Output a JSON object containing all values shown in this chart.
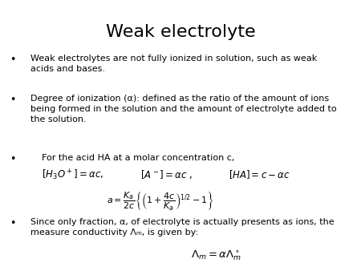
{
  "title": "Weak electrolyte",
  "title_fontsize": 16,
  "background_color": "#ffffff",
  "text_color": "#000000",
  "bullet1": "Weak electrolytes are not fully ionized in solution, such as weak\nacids and bases.",
  "bullet2": "Degree of ionization (α): defined as the ratio of the amount of ions\nbeing formed in the solution and the amount of electrolyte added to\nthe solution.",
  "bullet3_intro": "For the acid HA at a molar concentration c,",
  "bullet3_eq1": "$[H_3O^+] = \\alpha c,$",
  "bullet3_eq2": "$[A^-] = \\alpha c\\ ,$",
  "bullet3_eq3": "$[HA] = c -\\alpha c$",
  "bullet3_formula": "$a = \\dfrac{K_a}{2c}\\left\\{\\left(1 + \\dfrac{4c}{K_a}\\right)^{1/2} - 1\\right\\}$",
  "bullet4": "Since only fraction, α, of electrolyte is actually presents as ions, the\nmeasure conductivity Λₘ, is given by:",
  "bullet4_formula": "$\\Lambda_m = \\alpha\\Lambda^\\circ_m$",
  "body_fontsize": 8,
  "eq_fontsize": 8.5,
  "formula_fontsize": 8
}
